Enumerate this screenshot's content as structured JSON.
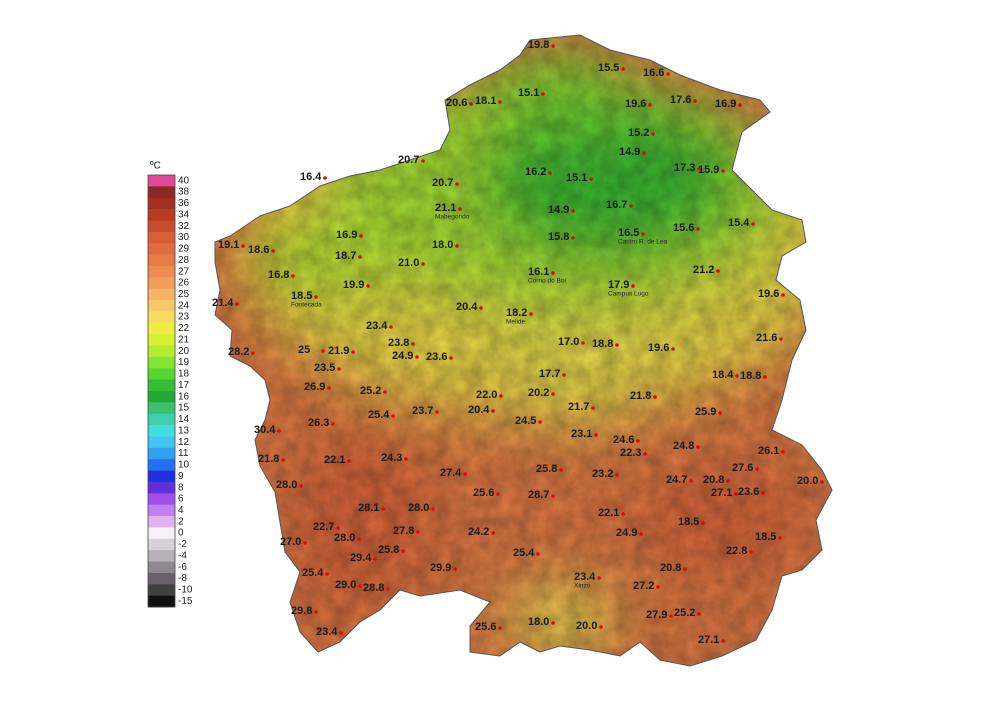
{
  "legend": {
    "unit": "ºC",
    "levels": [
      {
        "value": 40,
        "color": "#e0479a"
      },
      {
        "value": 38,
        "color": "#8a2a22"
      },
      {
        "value": 36,
        "color": "#a3301f"
      },
      {
        "value": 34,
        "color": "#b83a22"
      },
      {
        "value": 32,
        "color": "#c94c2c"
      },
      {
        "value": 30,
        "color": "#d85e38"
      },
      {
        "value": 29,
        "color": "#e06c40"
      },
      {
        "value": 28,
        "color": "#e87c48"
      },
      {
        "value": 27,
        "color": "#ef8c52"
      },
      {
        "value": 26,
        "color": "#f49e5c"
      },
      {
        "value": 25,
        "color": "#f7b466"
      },
      {
        "value": 24,
        "color": "#f8c96c"
      },
      {
        "value": 23,
        "color": "#f7dc60"
      },
      {
        "value": 22,
        "color": "#f0ec44"
      },
      {
        "value": 21,
        "color": "#d8f034"
      },
      {
        "value": 20,
        "color": "#b4ec30"
      },
      {
        "value": 19,
        "color": "#84e430"
      },
      {
        "value": 18,
        "color": "#56d630"
      },
      {
        "value": 17,
        "color": "#34c032"
      },
      {
        "value": 16,
        "color": "#22a834"
      },
      {
        "value": 15,
        "color": "#3cc070"
      },
      {
        "value": 14,
        "color": "#40d0b0"
      },
      {
        "value": 13,
        "color": "#40dede"
      },
      {
        "value": 12,
        "color": "#3ec6f0"
      },
      {
        "value": 11,
        "color": "#30a0f0"
      },
      {
        "value": 10,
        "color": "#2070f0"
      },
      {
        "value": 9,
        "color": "#2030e0"
      },
      {
        "value": 8,
        "color": "#6030d8"
      },
      {
        "value": 6,
        "color": "#a050e8"
      },
      {
        "value": 4,
        "color": "#c080f0"
      },
      {
        "value": 2,
        "color": "#e0b0f0"
      },
      {
        "value": 0,
        "color": "#f8f0f8"
      },
      {
        "value": -2,
        "color": "#d8d0d8"
      },
      {
        "value": -4,
        "color": "#b8b0b8"
      },
      {
        "value": -6,
        "color": "#908890"
      },
      {
        "value": -8,
        "color": "#686068"
      },
      {
        "value": -10,
        "color": "#404040"
      },
      {
        "value": -15,
        "color": "#101010"
      }
    ]
  },
  "stations": [
    {
      "temp": 19.8
    },
    {
      "temp": 15.5
    },
    {
      "temp": 16.6
    },
    {
      "temp": 15.1
    },
    {
      "temp": 20.6
    },
    {
      "temp": 18.1
    },
    {
      "temp": 19.6
    },
    {
      "temp": 17.6
    },
    {
      "temp": 16.9
    },
    {
      "temp": 15.2
    },
    {
      "temp": 14.9
    },
    {
      "temp": 17.3
    },
    {
      "temp": 15.9
    },
    {
      "temp": 16.2
    },
    {
      "temp": 15.1
    },
    {
      "temp": 20.7
    },
    {
      "temp": 16.4
    },
    {
      "temp": 20.7
    },
    {
      "temp": 21.1,
      "name": "Mabegondo"
    },
    {
      "temp": 14.9
    },
    {
      "temp": 16.7
    },
    {
      "temp": 15.6
    },
    {
      "temp": 15.4
    },
    {
      "temp": 16.9
    },
    {
      "temp": 18.7
    },
    {
      "temp": 19.1
    },
    {
      "temp": 18.6
    },
    {
      "temp": 15.8
    },
    {
      "temp": 16.5,
      "name": "Castro R. de Lea"
    },
    {
      "temp": 18,
      "temp_label": "18.0"
    },
    {
      "temp": 21,
      "temp_label": "21.0"
    },
    {
      "temp": 16.1,
      "name": "Corno do Boi"
    },
    {
      "temp": 21.2
    },
    {
      "temp": 16.8
    },
    {
      "temp": 19.9
    },
    {
      "temp": 17.9,
      "name": "Campus Lugo"
    },
    {
      "temp": 19.6
    },
    {
      "temp": 21.4
    },
    {
      "temp": 18.5,
      "name": "Fontecada"
    },
    {
      "temp": 20.4
    },
    {
      "temp": 18.2,
      "name": "Melide"
    },
    {
      "temp": 23.4
    },
    {
      "temp": 21.6
    },
    {
      "temp": 28.2
    },
    {
      "temp": 25
    },
    {
      "temp": 21.9
    },
    {
      "temp": 23.8
    },
    {
      "temp": 24.9
    },
    {
      "temp": 23.6
    },
    {
      "temp": 17,
      "temp_label": "17.0"
    },
    {
      "temp": 18.8
    },
    {
      "temp": 19.6
    },
    {
      "temp": 23.5
    },
    {
      "temp": 17.7
    },
    {
      "temp": 18.4
    },
    {
      "temp": 18.8
    },
    {
      "temp": 26.9
    },
    {
      "temp": 25.2
    },
    {
      "temp": 22,
      "temp_label": "22.0"
    },
    {
      "temp": 20.2
    },
    {
      "temp": 21.8
    },
    {
      "temp": 25.4
    },
    {
      "temp": 23.7
    },
    {
      "temp": 20.4
    },
    {
      "temp": 21.7
    },
    {
      "temp": 25.9
    },
    {
      "temp": 26.3
    },
    {
      "temp": 30.4
    },
    {
      "temp": 24.5
    },
    {
      "temp": 23.1
    },
    {
      "temp": 24.6
    },
    {
      "temp": 24.8
    },
    {
      "temp": 21.8
    },
    {
      "temp": 22.1
    },
    {
      "temp": 24.3
    },
    {
      "temp": 22.3
    },
    {
      "temp": 26.1
    },
    {
      "temp": 27.4
    },
    {
      "temp": 25.8
    },
    {
      "temp": 23.2
    },
    {
      "temp": 27.6
    },
    {
      "temp": 24.7
    },
    {
      "temp": 20.8
    },
    {
      "temp": 28,
      "temp_label": "28.0"
    },
    {
      "temp": 20,
      "temp_label": "20.0"
    },
    {
      "temp": 23.6
    },
    {
      "temp": 27.1
    },
    {
      "temp": 25.6
    },
    {
      "temp": 28.7
    },
    {
      "temp": 28.1
    },
    {
      "temp": 28,
      "temp_label": "28.0"
    },
    {
      "temp": 22.1
    },
    {
      "temp": 22.7
    },
    {
      "temp": 27.8
    },
    {
      "temp": 24.2
    },
    {
      "temp": 24.9
    },
    {
      "temp": 18.5
    },
    {
      "temp": 28,
      "temp_label": "28.0"
    },
    {
      "temp": 27,
      "temp_label": "27.0"
    },
    {
      "temp": 18.5
    },
    {
      "temp": 25.4
    },
    {
      "temp": 29.4
    },
    {
      "temp": 25.8
    },
    {
      "temp": 22.8
    },
    {
      "temp": 29.9
    },
    {
      "temp": 25.4
    },
    {
      "temp": 23.4,
      "name": "Xinzo"
    },
    {
      "temp": 20.8
    },
    {
      "temp": 27.2
    },
    {
      "temp": 29,
      "temp_label": "29.0"
    },
    {
      "temp": 28.8
    },
    {
      "temp": 29.8
    },
    {
      "temp": 27.9
    },
    {
      "temp": 25.2
    },
    {
      "temp": 23.4
    },
    {
      "temp": 25.6
    },
    {
      "temp": 18,
      "temp_label": "18.0"
    },
    {
      "temp": 20,
      "temp_label": "20.0"
    },
    {
      "temp": 27.1
    }
  ]
}
